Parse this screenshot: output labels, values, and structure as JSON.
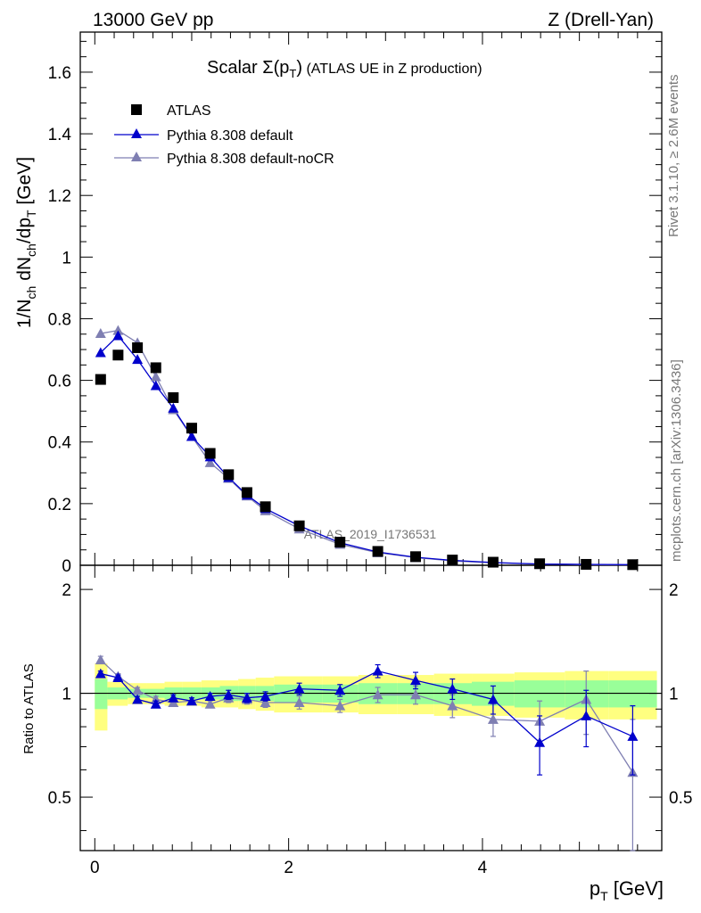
{
  "header": {
    "energy_label": "13000 GeV pp",
    "process_label": "Z (Drell-Yan)"
  },
  "side_text": {
    "rivet": "Rivet 3.1.10, ≥ 2.6M events",
    "mcplots": "mcplots.cern.ch [arXiv:1306.3436]"
  },
  "analysis_label": "ATLAS_2019_I1736531",
  "colors": {
    "data": "#000000",
    "default": "#0000cc",
    "nocr": "#7f7fb2",
    "band_inner": "#99ff99",
    "band_outer": "#ffff80"
  },
  "chart_data": [
    {
      "type": "scatter",
      "title_main": "Scalar Σ(p",
      "title_sub": "T",
      "title_close": ")",
      "title_rest": " (ATLAS UE in Z production)",
      "ylabel": "1/N_ch dN_ch/dp_T [GeV]",
      "ylabel_parts": {
        "a": "1/N",
        "b": "ch",
        "c": " dN",
        "d": "ch",
        "e": "/dp",
        "f": "T",
        "g": " [GeV]"
      },
      "xlim": [
        -0.15,
        5.85
      ],
      "ylim": [
        0,
        1.73
      ],
      "yticks": [
        "0",
        "0.2",
        "0.4",
        "0.6",
        "0.8",
        "1",
        "1.2",
        "1.4",
        "1.6"
      ],
      "x": [
        0.06,
        0.24,
        0.44,
        0.63,
        0.81,
        1.0,
        1.19,
        1.38,
        1.57,
        1.76,
        2.11,
        2.53,
        2.92,
        3.31,
        3.69,
        4.11,
        4.59,
        5.07,
        5.55
      ],
      "series": [
        {
          "name": "ATLAS",
          "marker": "square",
          "values": [
            0.603,
            0.682,
            0.706,
            0.641,
            0.544,
            0.445,
            0.363,
            0.294,
            0.236,
            0.19,
            0.128,
            0.075,
            0.045,
            0.028,
            0.017,
            0.01,
            0.005,
            0.003,
            0.002
          ]
        },
        {
          "name": "Pythia 8.308 default",
          "marker": "triangle",
          "values": [
            0.69,
            0.745,
            0.668,
            0.583,
            0.51,
            0.418,
            0.352,
            0.285,
            0.228,
            0.184,
            0.128,
            0.073,
            0.043,
            0.026,
            0.016,
            0.009,
            0.004,
            0.003,
            0.002
          ]
        },
        {
          "name": "Pythia 8.308 default-noCR",
          "marker": "triangle",
          "values": [
            0.752,
            0.762,
            0.722,
            0.612,
            0.505,
            0.418,
            0.333,
            0.282,
            0.225,
            0.177,
            0.118,
            0.068,
            0.041,
            0.025,
            0.014,
            0.008,
            0.004,
            0.002,
            0.001
          ]
        }
      ]
    },
    {
      "type": "line",
      "ylabel": "Ratio to ATLAS",
      "xlabel_main": "p",
      "xlabel_sub": "T",
      "xlabel_unit": " [GeV]",
      "xlim": [
        -0.15,
        5.85
      ],
      "ylim": [
        0.35,
        2.35
      ],
      "xticks": [
        "0",
        "2",
        "4"
      ],
      "yticks": [
        "0.5",
        "1",
        "2"
      ],
      "reference": 1,
      "band_edges": [
        0.0,
        0.13,
        0.34,
        0.54,
        0.72,
        0.9,
        1.1,
        1.29,
        1.48,
        1.66,
        1.85,
        2.35,
        2.72,
        3.12,
        3.5,
        3.89,
        4.33,
        4.85,
        5.3,
        5.8
      ],
      "band_inner_hw": [
        0.1,
        0.04,
        0.03,
        0.03,
        0.04,
        0.04,
        0.04,
        0.05,
        0.05,
        0.05,
        0.06,
        0.06,
        0.07,
        0.07,
        0.07,
        0.08,
        0.09,
        0.09,
        0.09
      ],
      "band_outer_hw": [
        0.22,
        0.08,
        0.07,
        0.07,
        0.08,
        0.08,
        0.09,
        0.09,
        0.1,
        0.11,
        0.12,
        0.12,
        0.13,
        0.13,
        0.14,
        0.14,
        0.15,
        0.16,
        0.16
      ],
      "series": [
        {
          "name": "Pythia 8.308 default",
          "values": [
            1.14,
            1.11,
            0.96,
            0.93,
            0.97,
            0.95,
            0.98,
            0.99,
            0.97,
            0.98,
            1.03,
            1.02,
            1.16,
            1.09,
            1.03,
            0.96,
            0.72,
            0.86,
            0.75
          ],
          "errors": [
            0.02,
            0.02,
            0.02,
            0.02,
            0.02,
            0.02,
            0.02,
            0.03,
            0.03,
            0.03,
            0.04,
            0.04,
            0.05,
            0.06,
            0.07,
            0.09,
            0.14,
            0.16,
            0.17
          ]
        },
        {
          "name": "Pythia 8.308 default-noCR",
          "values": [
            1.25,
            1.12,
            1.02,
            0.96,
            0.94,
            0.95,
            0.93,
            0.97,
            0.96,
            0.94,
            0.94,
            0.92,
            0.99,
            0.99,
            0.92,
            0.84,
            0.83,
            0.96,
            0.59
          ],
          "errors": [
            0.03,
            0.02,
            0.02,
            0.02,
            0.02,
            0.02,
            0.02,
            0.03,
            0.03,
            0.03,
            0.04,
            0.04,
            0.05,
            0.06,
            0.07,
            0.09,
            0.12,
            0.2,
            0.25
          ]
        }
      ]
    }
  ]
}
